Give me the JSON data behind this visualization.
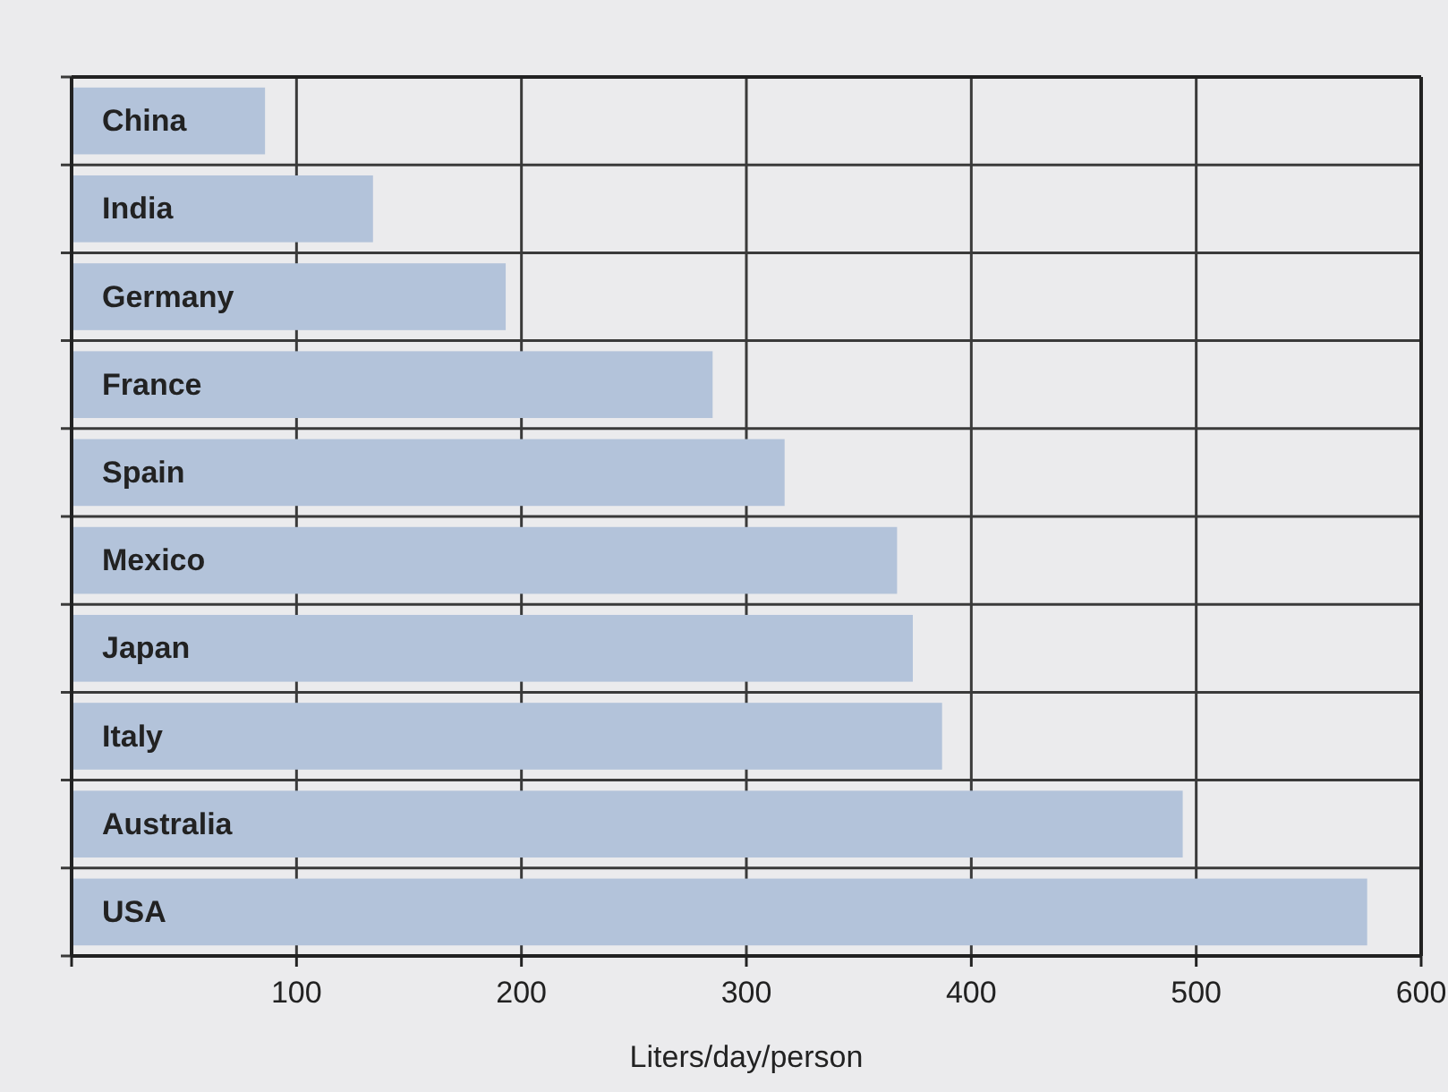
{
  "chart_data": {
    "type": "bar",
    "orientation": "horizontal",
    "xlabel": "Liters/day/person",
    "categories": [
      "China",
      "India",
      "Germany",
      "France",
      "Spain",
      "Mexico",
      "Japan",
      "Italy",
      "Australia",
      "USA"
    ],
    "values": [
      86,
      134,
      193,
      285,
      317,
      367,
      374,
      387,
      494,
      576
    ],
    "color": "#b3c3da",
    "xlim": [
      0,
      600
    ],
    "xticks": [
      {
        "value": 0,
        "label": null
      },
      100,
      200,
      300,
      400,
      500,
      600
    ],
    "grid": true
  }
}
